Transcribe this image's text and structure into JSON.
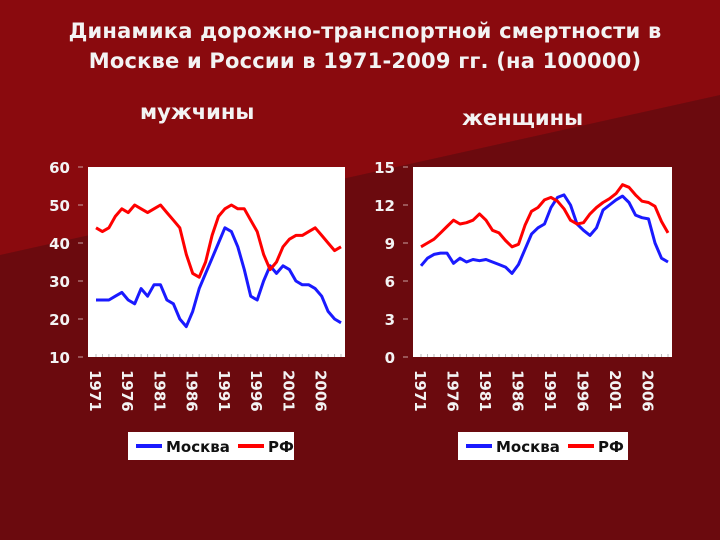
{
  "slide": {
    "title_line1": "Динамика дорожно-транспортной смертности в",
    "title_line2": "Москве и России в 1971-2009 гг. (на 100000)",
    "colors": {
      "background": "#6b0a0e",
      "plot": "#ffffff",
      "text": "#f3f3f3"
    }
  },
  "chart_data": [
    {
      "type": "line",
      "title": "мужчины",
      "xlabel": "",
      "ylabel": "",
      "x": [
        1971,
        1972,
        1973,
        1974,
        1975,
        1976,
        1977,
        1978,
        1979,
        1980,
        1981,
        1982,
        1983,
        1984,
        1985,
        1986,
        1987,
        1988,
        1989,
        1990,
        1991,
        1992,
        1993,
        1994,
        1995,
        1996,
        1997,
        1998,
        1999,
        2000,
        2001,
        2002,
        2003,
        2004,
        2005,
        2006,
        2007,
        2008,
        2009
      ],
      "xticks": [
        "1971",
        "1976",
        "1981",
        "1986",
        "1991",
        "1996",
        "2001",
        "2006"
      ],
      "ylim": [
        10,
        60
      ],
      "yticks": [
        "10",
        "20",
        "30",
        "40",
        "50",
        "60"
      ],
      "grid": false,
      "legend": "bottom",
      "series": [
        {
          "name": "Москва",
          "color": "#1a1aff",
          "values": [
            25,
            25,
            25,
            26,
            27,
            25,
            24,
            28,
            26,
            29,
            29,
            25,
            24,
            20,
            18,
            22,
            28,
            32,
            36,
            40,
            44,
            43,
            39,
            33,
            26,
            25,
            30,
            34,
            32,
            34,
            33,
            30,
            29,
            29,
            28,
            26,
            22,
            20,
            19
          ]
        },
        {
          "name": "РФ",
          "color": "#ff0000",
          "values": [
            44,
            43,
            44,
            47,
            49,
            48,
            50,
            49,
            48,
            49,
            50,
            48,
            46,
            44,
            37,
            32,
            31,
            35,
            42,
            47,
            49,
            50,
            49,
            49,
            46,
            43,
            37,
            33,
            35,
            39,
            41,
            42,
            42,
            43,
            44,
            42,
            40,
            38,
            39
          ]
        }
      ]
    },
    {
      "type": "line",
      "title": "женщины",
      "xlabel": "",
      "ylabel": "",
      "x": [
        1971,
        1972,
        1973,
        1974,
        1975,
        1976,
        1977,
        1978,
        1979,
        1980,
        1981,
        1982,
        1983,
        1984,
        1985,
        1986,
        1987,
        1988,
        1989,
        1990,
        1991,
        1992,
        1993,
        1994,
        1995,
        1996,
        1997,
        1998,
        1999,
        2000,
        2001,
        2002,
        2003,
        2004,
        2005,
        2006,
        2007,
        2008,
        2009
      ],
      "xticks": [
        "1971",
        "1976",
        "1981",
        "1986",
        "1991",
        "1996",
        "2001",
        "2006"
      ],
      "ylim": [
        0,
        15
      ],
      "yticks": [
        "0",
        "3",
        "6",
        "9",
        "12",
        "15"
      ],
      "grid": false,
      "legend": "bottom",
      "series": [
        {
          "name": "Москва",
          "color": "#1a1aff",
          "values": [
            7.2,
            7.8,
            8.1,
            8.2,
            8.2,
            7.4,
            7.8,
            7.5,
            7.7,
            7.6,
            7.7,
            7.5,
            7.3,
            7.1,
            6.6,
            7.3,
            8.5,
            9.7,
            10.2,
            10.5,
            11.8,
            12.6,
            12.8,
            12.0,
            10.5,
            10.0,
            9.6,
            10.2,
            11.6,
            12.0,
            12.4,
            12.7,
            12.2,
            11.2,
            11.0,
            10.9,
            9.0,
            7.8,
            7.5
          ]
        },
        {
          "name": "РФ",
          "color": "#ff0000",
          "values": [
            8.7,
            9.0,
            9.3,
            9.8,
            10.3,
            10.8,
            10.5,
            10.6,
            10.8,
            11.3,
            10.8,
            10.0,
            9.8,
            9.2,
            8.7,
            8.9,
            10.4,
            11.5,
            11.8,
            12.4,
            12.6,
            12.3,
            11.7,
            10.8,
            10.5,
            10.6,
            11.3,
            11.8,
            12.2,
            12.5,
            12.9,
            13.6,
            13.4,
            12.8,
            12.3,
            12.2,
            11.9,
            10.7,
            9.8
          ]
        }
      ]
    }
  ]
}
